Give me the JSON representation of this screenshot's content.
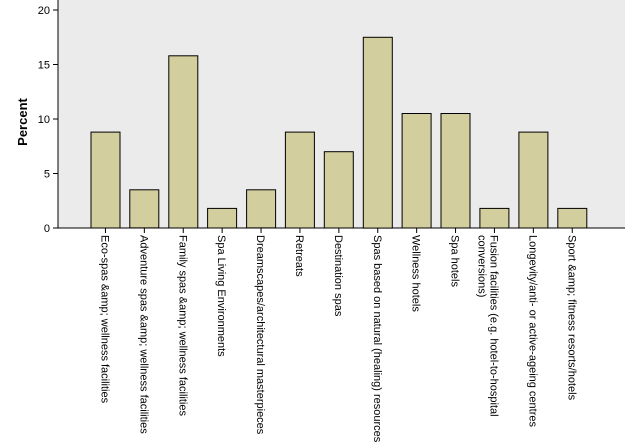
{
  "chart_data": {
    "type": "bar",
    "title": "",
    "xlabel": "",
    "ylabel": "Percent",
    "ylim": [
      0,
      20
    ],
    "yticks": [
      0,
      5,
      10,
      15,
      20
    ],
    "grid": false,
    "bar_color": "#d3ce9d",
    "bar_edge_color": "#000000",
    "plot_background": "#ebebeb",
    "categories": [
      "Eco-spas &amp; wellness facilities",
      "Adventure spas &amp; wellness facilities",
      "Family spas &amp; wellness facilities",
      "Spa Living Environments",
      "Dreamscapes/architectural masterpieces",
      "Retreats",
      "Destination spas",
      "Spas based on natural (healing) resources",
      "Wellness hotels",
      "Spa hotels",
      "Fusion facilities (e.g. hotel-to-hospital conversions)",
      "Longevity/anti- or active-ageing centres",
      "Sport &amp; fitness resorts/hotels"
    ],
    "category_lines": [
      [
        "Eco-spas &amp; wellness facilities"
      ],
      [
        "Adventure spas &amp; wellness facilities"
      ],
      [
        "Family spas &amp; wellness facilities"
      ],
      [
        "Spa Living Environments"
      ],
      [
        "Dreamscapes/architectural masterpieces"
      ],
      [
        "Retreats"
      ],
      [
        "Destination spas"
      ],
      [
        "Spas based on natural (healing) resources"
      ],
      [
        "Wellness hotels"
      ],
      [
        "Spa hotels"
      ],
      [
        "Fusion facilities (e.g. hotel-to-hospital",
        "conversions)"
      ],
      [
        "Longevity/anti- or active-ageing centres"
      ],
      [
        "Sport &amp; fitness resorts/hotels"
      ]
    ],
    "values": [
      8.8,
      3.5,
      15.8,
      1.8,
      3.5,
      8.8,
      7.0,
      17.5,
      10.5,
      10.5,
      1.8,
      8.8,
      1.8
    ]
  }
}
